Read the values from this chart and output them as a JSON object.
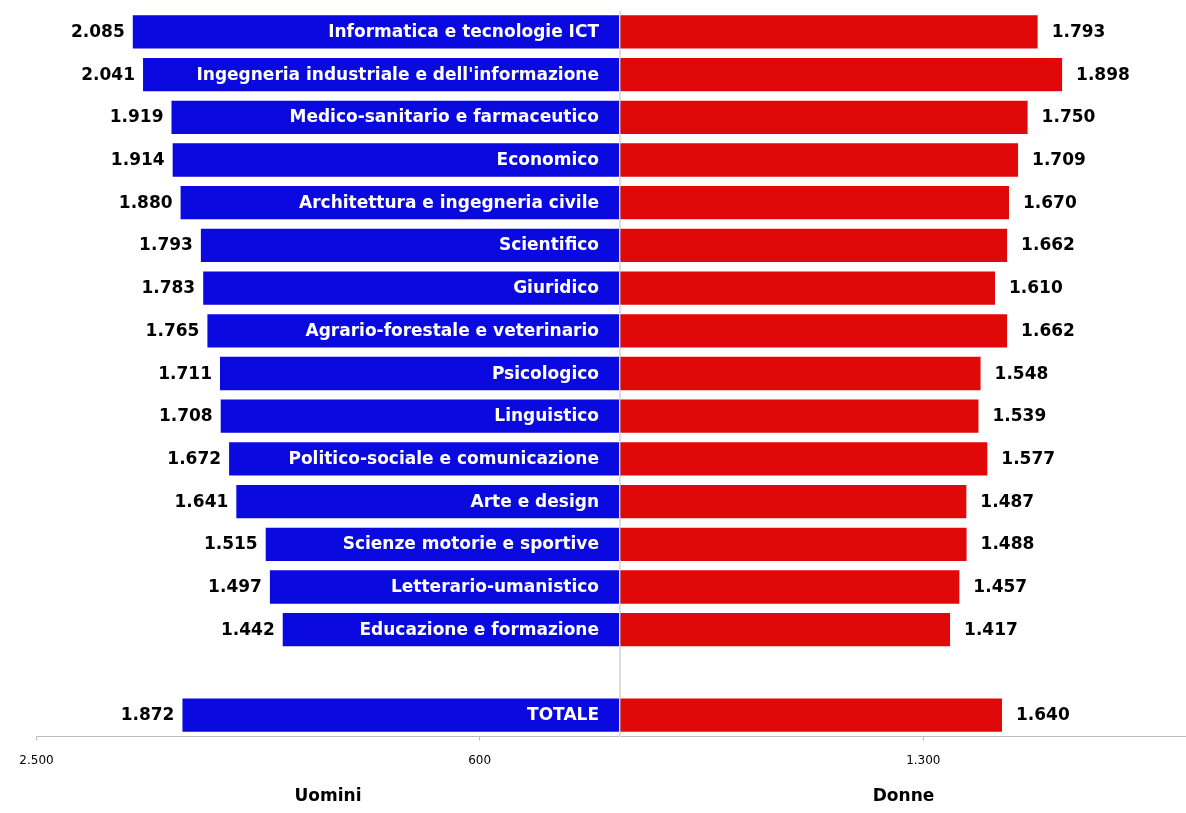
{
  "chart_data": [
    {
      "type": "bar",
      "orientation": "horizontal",
      "xlabel": "Uomini",
      "color": "#0a0ae0",
      "categories": [
        "Informatica e tecnologie ICT",
        "Ingegneria industriale e dell'informazione",
        "Medico-sanitario e farmaceutico",
        "Economico",
        "Architettura e ingegneria civile",
        "Scientifico",
        "Giuridico",
        "Agrario-forestale e veterinario",
        "Psicologico",
        "Linguistico",
        "Politico-sociale e comunicazione",
        "Arte e design",
        "Scienze motorie e sportive",
        "Letterario-umanistico",
        "Educazione e formazione",
        null,
        "TOTALE"
      ],
      "xlim": [
        2500,
        0
      ],
      "xticks": [
        {
          "value": 2500,
          "label": "2.500"
        },
        {
          "value": 600,
          "label": "600"
        }
      ],
      "values": [
        2085,
        2041,
        1919,
        1914,
        1880,
        1793,
        1783,
        1765,
        1711,
        1708,
        1672,
        1641,
        1515,
        1497,
        1442,
        null,
        1872
      ],
      "value_labels": [
        "2.085",
        "2.041",
        "1.919",
        "1.914",
        "1.880",
        "1.793",
        "1.783",
        "1.765",
        "1.711",
        "1.708",
        "1.672",
        "1.641",
        "1.515",
        "1.497",
        "1.442",
        null,
        "1.872"
      ]
    },
    {
      "type": "bar",
      "orientation": "horizontal",
      "xlabel": "Donne",
      "color": "#e00808",
      "categories": [
        null,
        null,
        null,
        null,
        null,
        null,
        null,
        null,
        null,
        null,
        null,
        null,
        null,
        null,
        null,
        null,
        null
      ],
      "xlim": [
        0,
        2430
      ],
      "xticks": [
        {
          "value": 1300,
          "label": "1.300"
        }
      ],
      "values": [
        1793,
        1898,
        1750,
        1709,
        1670,
        1662,
        1610,
        1662,
        1548,
        1539,
        1577,
        1487,
        1488,
        1457,
        1417,
        null,
        1640
      ],
      "value_labels": [
        "1.793",
        "1.898",
        "1.750",
        "1.709",
        "1.670",
        "1.662",
        "1.610",
        "1.662",
        "1.548",
        "1.539",
        "1.577",
        "1.487",
        "1.488",
        "1.457",
        "1.417",
        null,
        "1.640"
      ]
    }
  ]
}
